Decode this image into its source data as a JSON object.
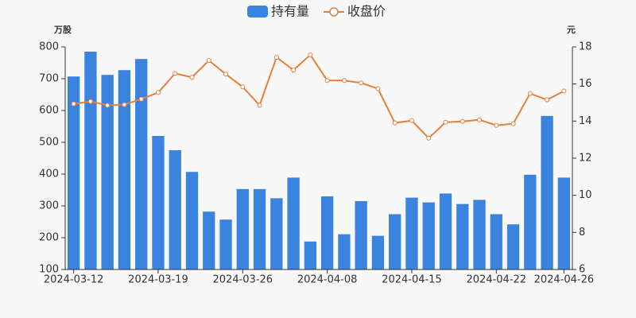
{
  "chart_data": {
    "type": "bar-line",
    "categories": [
      "2024-03-12",
      null,
      null,
      null,
      null,
      "2024-03-19",
      null,
      null,
      null,
      null,
      "2024-03-26",
      null,
      null,
      null,
      null,
      "2024-04-08",
      null,
      null,
      null,
      null,
      "2024-04-15",
      null,
      null,
      null,
      null,
      "2024-04-22",
      null,
      null,
      null,
      "2024-04-26"
    ],
    "y_axis_label": "万股",
    "y2_axis_label": "元",
    "ylim": [
      100,
      800
    ],
    "yticks": [
      100,
      200,
      300,
      400,
      500,
      600,
      700,
      800
    ],
    "y2lim": [
      6,
      18
    ],
    "y2ticks": [
      6,
      8,
      10,
      12,
      14,
      16,
      18
    ],
    "series": [
      {
        "name": "持有量",
        "type": "bar",
        "color": "#3a84e0",
        "values": [
          707,
          785,
          712,
          727,
          762,
          520,
          475,
          407,
          282,
          257,
          353,
          353,
          324,
          389,
          188,
          330,
          211,
          315,
          206,
          274,
          326,
          311,
          339,
          306,
          319,
          274,
          242,
          398,
          583,
          389
        ]
      },
      {
        "name": "收盘价",
        "type": "line",
        "axis": "y2",
        "color": "#e8803a",
        "values": [
          14.93,
          15.06,
          14.85,
          14.89,
          15.19,
          15.54,
          16.57,
          16.36,
          17.27,
          16.53,
          15.84,
          14.85,
          17.44,
          16.75,
          17.57,
          16.19,
          16.19,
          16.06,
          15.75,
          13.9,
          14.03,
          13.08,
          13.94,
          13.98,
          14.07,
          13.77,
          13.86,
          15.49,
          15.15,
          15.62
        ]
      }
    ]
  }
}
